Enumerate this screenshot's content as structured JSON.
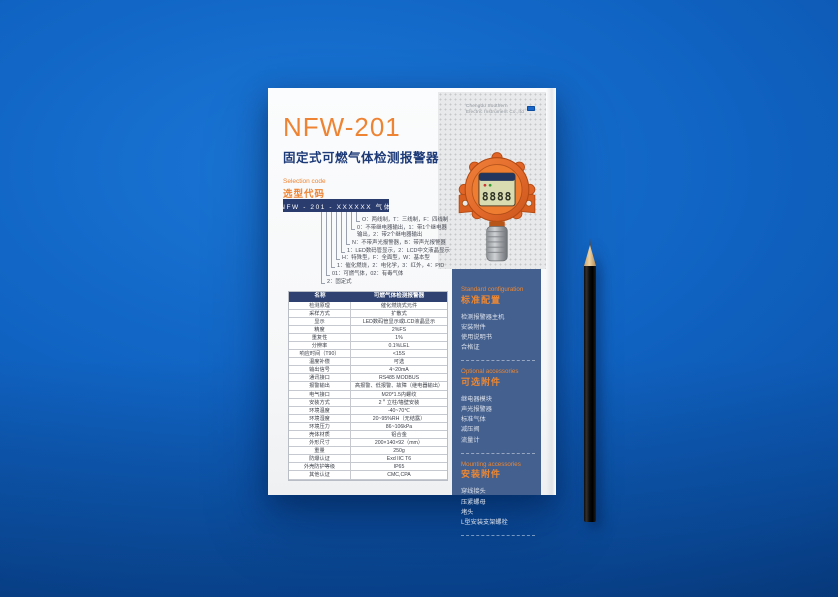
{
  "brand": {
    "name_line1": "Chengdu Southern",
    "name_line2": "Electric Instrument Co.,ltd"
  },
  "header": {
    "model": "NFW-201",
    "title": "固定式可燃气体检测报警器"
  },
  "selection": {
    "label_en": "Selection code",
    "label_cn": "选型代码",
    "code": "NFW - 201 - XXXXXX 气体",
    "options": [
      "O：两线制，T：三线制，F：四线制",
      "0：不带继电器输出，1：带1个继电器输出，2：带2个继电器输出",
      "N：不带声光报警器，B：带声光报警器",
      "1：LED数码管显示，2：LCD中文液晶显示",
      "H：特殊型，F：全面型，W：基本型",
      "1：催化燃烧，2：电化学，3：红外，4：PID",
      "01：可燃气体，02：有毒气体",
      "2：固定式"
    ]
  },
  "spec_table": {
    "header_label": "名称",
    "header_value": "可燃气体检测报警器",
    "rows": [
      {
        "l": "检测原理",
        "v": "催化燃烧式元件"
      },
      {
        "l": "采样方式",
        "v": "扩散式"
      },
      {
        "l": "显示",
        "v": "LED数码管显示或LCD液晶显示"
      },
      {
        "l": "精度",
        "v": "2%FS"
      },
      {
        "l": "重复性",
        "v": "1%"
      },
      {
        "l": "分辨率",
        "v": "0.1%LEL"
      },
      {
        "l": "响应时间（T90）",
        "v": "<15S"
      },
      {
        "l": "温度补偿",
        "v": "可选"
      },
      {
        "l": "输出信号",
        "v": "4~20mA"
      },
      {
        "l": "通讯接口",
        "v": "RS485 MODBUS"
      },
      {
        "l": "报警输出",
        "v": "高报警、低报警、故障（继电器输出）"
      },
      {
        "l": "电气接口",
        "v": "M20*1.5内螺纹"
      },
      {
        "l": "安装方式",
        "v": "2＂立柱/墙壁安装"
      },
      {
        "l": "环境温度",
        "v": "-40~70℃"
      },
      {
        "l": "环境湿度",
        "v": "20~95%RH（无结露）"
      },
      {
        "l": "环境压力",
        "v": "86~106kPa"
      },
      {
        "l": "壳体材质",
        "v": "铝合金"
      },
      {
        "l": "外形尺寸",
        "v": "200×140×92（mm）"
      },
      {
        "l": "重量",
        "v": "250g"
      },
      {
        "l": "防爆认证",
        "v": "Exd IIC T6"
      },
      {
        "l": "外壳防护等级",
        "v": "IP65"
      },
      {
        "l": "其他认证",
        "v": "CMC,CPA"
      }
    ]
  },
  "sidebar": {
    "sections": [
      {
        "en": "Standard configuration",
        "cn": "标准配置",
        "items": [
          "检测报警器主机",
          "安装附件",
          "使用说明书",
          "合格证"
        ]
      },
      {
        "en": "Optional accessories",
        "cn": "可选附件",
        "items": [
          "继电器模块",
          "声光报警器",
          "标准气体",
          "减压阀",
          "流量计"
        ]
      },
      {
        "en": "Mounting accessories",
        "cn": "安装附件",
        "items": [
          "穿线接头",
          "压紧螺母",
          "堵头",
          "L型安装支架螺栓"
        ]
      }
    ]
  },
  "device": {
    "display": "8888"
  },
  "colors": {
    "accent_orange": "#ee8433",
    "navy": "#2a3c6e",
    "sidebar_blue": "#44608e",
    "background_blue": "#0d5cb8",
    "device_orange": "#e2692b"
  }
}
